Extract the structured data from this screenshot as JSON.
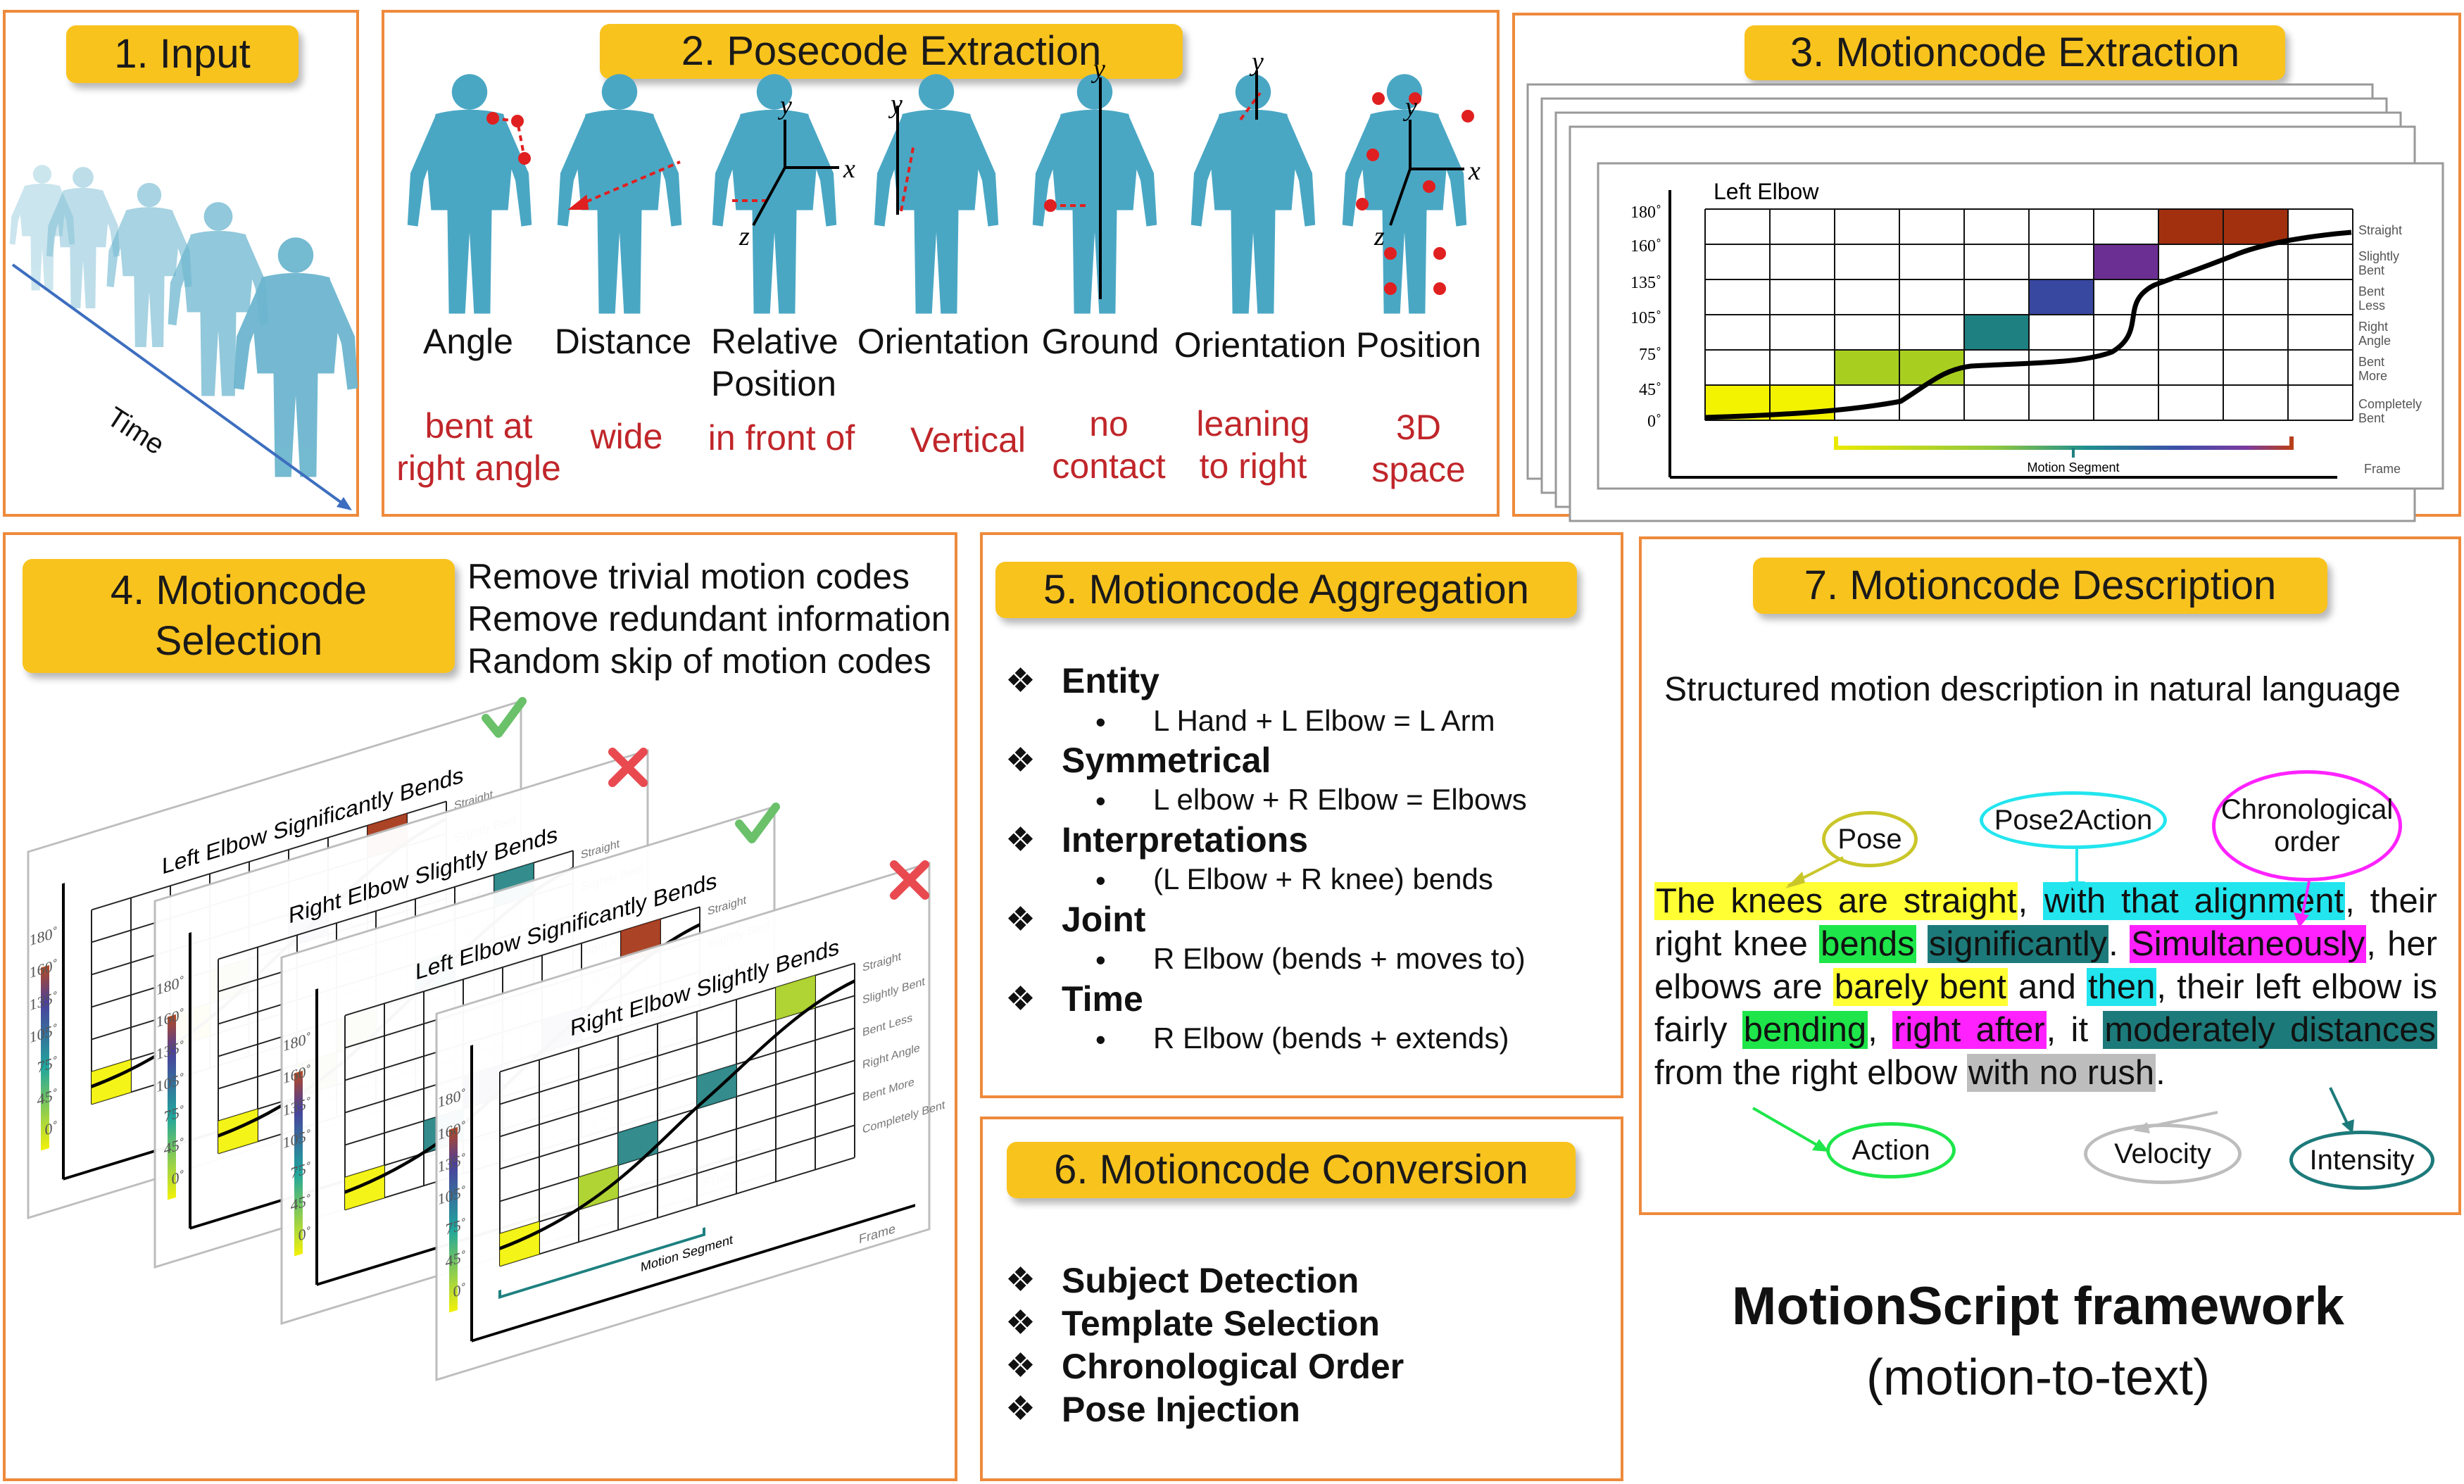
{
  "panels": {
    "p1": {
      "title": "1.   Input",
      "time_label": "Time"
    },
    "p2": {
      "title": "2. Posecode Extraction",
      "axis": {
        "y": "y",
        "x": "x",
        "z": "z"
      },
      "items": [
        {
          "label": "Angle",
          "example": "bent at\nright angle"
        },
        {
          "label": "Distance",
          "example": "wide"
        },
        {
          "label": "Relative\nPosition",
          "example": "in front of"
        },
        {
          "label": "Orientation",
          "example": "Vertical"
        },
        {
          "label": "Ground",
          "example": "no\ncontact"
        },
        {
          "label": "Orientation",
          "example": "leaning\nto right"
        },
        {
          "label": "Position",
          "example": "3D\nspace"
        }
      ]
    },
    "p3": {
      "title": "3. Motioncode Extraction"
    },
    "p4": {
      "title": "4. Motioncode\nSelection",
      "rules": [
        "Remove trivial motion codes",
        "Remove redundant information",
        "Random skip of motion codes"
      ],
      "chart_titles": [
        "Left Elbow Significantly Bends",
        "Right Elbow Slightly Bends",
        "Left Elbow Significantly Bends",
        "Right Elbow Slightly Bends"
      ],
      "segment_label": "Motion Segment",
      "frame_label": "Frame"
    },
    "p5": {
      "title": "5. Motioncode Aggregation",
      "sections": [
        {
          "head": "Entity",
          "sub": "L Hand + L Elbow = L Arm"
        },
        {
          "head": "Symmetrical",
          "sub": "L elbow + R Elbow = Elbows"
        },
        {
          "head": "Interpretations",
          "sub": "(L Elbow + R knee) bends"
        },
        {
          "head": "Joint",
          "sub": "R Elbow (bends + moves to)"
        },
        {
          "head": "Time",
          "sub": "R Elbow (bends + extends)"
        }
      ]
    },
    "p6": {
      "title": "6. Motioncode Conversion",
      "items": [
        "Subject Detection",
        "Template Selection",
        "Chronological Order",
        "Pose Injection"
      ]
    },
    "p7": {
      "title": "7. Motioncode Description",
      "subtitle": "Structured motion description in natural language",
      "tags": {
        "pose": "Pose",
        "pose2action": "Pose2Action",
        "chronological": "Chronological\norder",
        "action": "Action",
        "velocity": "Velocity",
        "intensity": "Intensity"
      },
      "segments": [
        {
          "t": "The knees are straight",
          "c": "#ffff33"
        },
        {
          "t": ", ",
          "c": ""
        },
        {
          "t": "with that alignment",
          "c": "#22e5ee"
        },
        {
          "t": ", their right knee ",
          "c": ""
        },
        {
          "t": "bends",
          "c": "#1ee64a"
        },
        {
          "t": " ",
          "c": ""
        },
        {
          "t": "significantly",
          "c": "#1d7a7a"
        },
        {
          "t": ". ",
          "c": ""
        },
        {
          "t": "Simultaneously",
          "c": "#ff22ff"
        },
        {
          "t": ", her elbows are ",
          "c": ""
        },
        {
          "t": "barely bent",
          "c": "#ffff33"
        },
        {
          "t": " and ",
          "c": ""
        },
        {
          "t": "then",
          "c": "#22e5ee"
        },
        {
          "t": ", their left elbow is fairly ",
          "c": ""
        },
        {
          "t": "bending",
          "c": "#1ee64a"
        },
        {
          "t": ", ",
          "c": ""
        },
        {
          "t": "right after",
          "c": "#ff22ff"
        },
        {
          "t": ", it ",
          "c": ""
        },
        {
          "t": "moderately distances",
          "c": "#1d7a7a"
        },
        {
          "t": " from the right elbow ",
          "c": ""
        },
        {
          "t": "with no rush",
          "c": "#bdbdbd"
        },
        {
          "t": ".",
          "c": ""
        }
      ]
    },
    "framework": {
      "title": "MotionScript framework",
      "subtitle": "(motion-to-text)"
    }
  },
  "chart_data": {
    "type": "line",
    "title": "Left Elbow",
    "yticks": [
      "0˚",
      "45˚",
      "75˚",
      "105˚",
      "135˚",
      "160˚",
      "180˚"
    ],
    "state_labels": [
      "Straight",
      "Slightly Bent",
      "Bent Less",
      "Right Angle",
      "Bent More",
      "Completely Bent"
    ],
    "xlabel": "Frame",
    "segment_label": "Motion Segment",
    "colors": {
      "accent_border": "#ee8a3c",
      "tag": "#f9c31e",
      "body": "#4aa7c4"
    }
  }
}
